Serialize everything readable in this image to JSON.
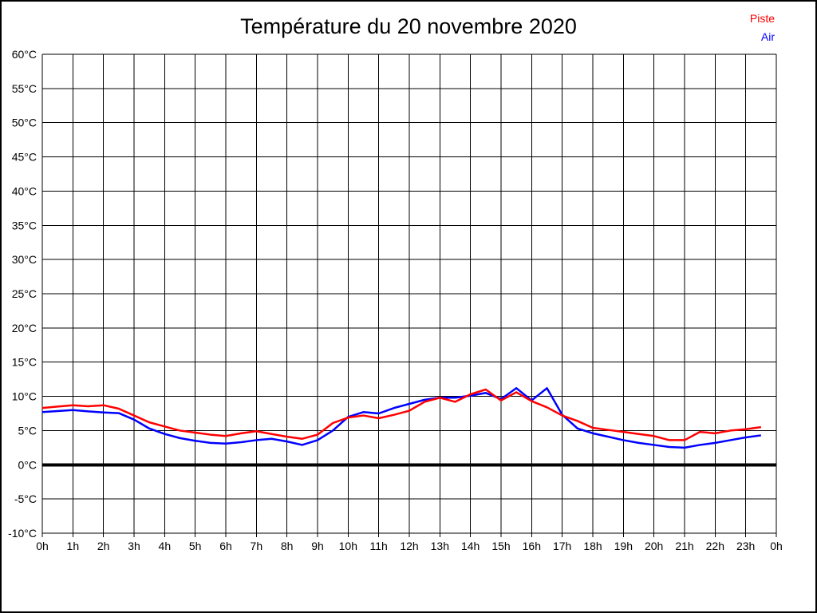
{
  "page": {
    "background": "#ffffff",
    "border_color": "#000000"
  },
  "chart_data": {
    "type": "line",
    "title": "Température du 20 novembre 2020",
    "xlabel": "",
    "ylabel": "",
    "xlim": [
      0,
      24
    ],
    "ylim": [
      -10,
      60
    ],
    "x_tick_step_hours": 1,
    "y_tick_step": 5,
    "grid": true,
    "grid_color": "#000000",
    "zero_line": {
      "value": 0,
      "color": "#000000",
      "width": 4
    },
    "legend_position": "top-right",
    "x_tick_labels": [
      "0h",
      "1h",
      "2h",
      "3h",
      "4h",
      "5h",
      "6h",
      "7h",
      "8h",
      "9h",
      "10h",
      "11h",
      "12h",
      "13h",
      "14h",
      "15h",
      "16h",
      "17h",
      "18h",
      "19h",
      "20h",
      "21h",
      "22h",
      "23h",
      "0h"
    ],
    "y_tick_labels": [
      "-10°C",
      "-5°C",
      "0°C",
      "5°C",
      "10°C",
      "15°C",
      "20°C",
      "25°C",
      "30°C",
      "35°C",
      "40°C",
      "45°C",
      "50°C",
      "55°C",
      "60°C"
    ],
    "y_tick_values": [
      -10,
      -5,
      0,
      5,
      10,
      15,
      20,
      25,
      30,
      35,
      40,
      45,
      50,
      55,
      60
    ],
    "x_hours": [
      0,
      0.5,
      1,
      1.5,
      2,
      2.5,
      3,
      3.5,
      4,
      4.5,
      5,
      5.5,
      6,
      6.5,
      7,
      7.5,
      8,
      8.5,
      9,
      9.5,
      10,
      10.5,
      11,
      11.5,
      12,
      12.5,
      13,
      13.5,
      14,
      14.5,
      15,
      15.5,
      16,
      16.5,
      17,
      17.5,
      18,
      18.5,
      19,
      19.5,
      20,
      20.5,
      21,
      21.5,
      22,
      22.5,
      23,
      23.5
    ],
    "series": [
      {
        "name": "Piste",
        "color": "#ff0000",
        "values": [
          8.3,
          8.5,
          8.7,
          8.55,
          8.7,
          8.2,
          7.2,
          6.2,
          5.6,
          5.0,
          4.7,
          4.4,
          4.2,
          4.6,
          4.9,
          4.5,
          4.1,
          3.8,
          4.4,
          6.1,
          6.9,
          7.2,
          6.8,
          7.3,
          7.9,
          9.2,
          9.8,
          9.2,
          10.3,
          11.0,
          9.4,
          10.6,
          9.3,
          8.4,
          7.2,
          6.4,
          5.4,
          5.1,
          4.8,
          4.5,
          4.2,
          3.6,
          3.6,
          4.8,
          4.6,
          5.0,
          5.2,
          5.5
        ]
      },
      {
        "name": "Air",
        "color": "#0000ff",
        "values": [
          7.7,
          7.85,
          8.0,
          7.8,
          7.65,
          7.55,
          6.6,
          5.3,
          4.5,
          3.9,
          3.5,
          3.2,
          3.1,
          3.3,
          3.6,
          3.8,
          3.4,
          2.9,
          3.6,
          5.0,
          7.0,
          7.7,
          7.5,
          8.3,
          8.9,
          9.5,
          9.8,
          9.8,
          10.1,
          10.5,
          9.6,
          11.2,
          9.4,
          11.2,
          7.3,
          5.3,
          4.6,
          4.1,
          3.6,
          3.2,
          2.9,
          2.6,
          2.5,
          2.9,
          3.2,
          3.6,
          4.0,
          4.3
        ]
      }
    ]
  }
}
